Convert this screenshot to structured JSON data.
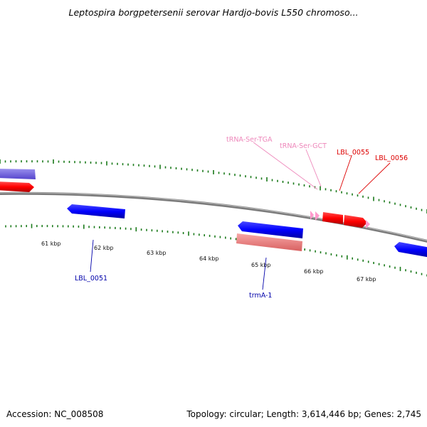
{
  "title": "Leptospira borgpetersenii serovar Hardjo-bovis L550 chromoso...",
  "footer": {
    "accession": "Accession: NC_008508",
    "summary": "Topology: circular; Length: 3,614,446 bp; Genes: 2,745"
  },
  "colors": {
    "forward_gene": "#ff0000",
    "reverse_gene": "#0000ff",
    "trna": "#ff99cc",
    "reverse_pseudo": "#7766dd",
    "forward_pseudo": "#ee7777",
    "tick": "#1a7a1a",
    "backbone": "#888888"
  },
  "ticks": [
    {
      "label": "61 kbp"
    },
    {
      "label": "62 kbp"
    },
    {
      "label": "63 kbp"
    },
    {
      "label": "64 kbp"
    },
    {
      "label": "65 kbp"
    },
    {
      "label": "66 kbp"
    },
    {
      "label": "67 kbp"
    }
  ],
  "labels": [
    {
      "text": "tRNA-Ser-TGA",
      "color": "#ee88bb"
    },
    {
      "text": "tRNA-Ser-GCT",
      "color": "#ee88bb"
    },
    {
      "text": "LBL_0055",
      "color": "#dd0000"
    },
    {
      "text": "LBL_0056",
      "color": "#dd0000"
    },
    {
      "text": "LBL_0051",
      "color": "#0000aa"
    },
    {
      "text": "trmA-1",
      "color": "#0000aa"
    }
  ]
}
